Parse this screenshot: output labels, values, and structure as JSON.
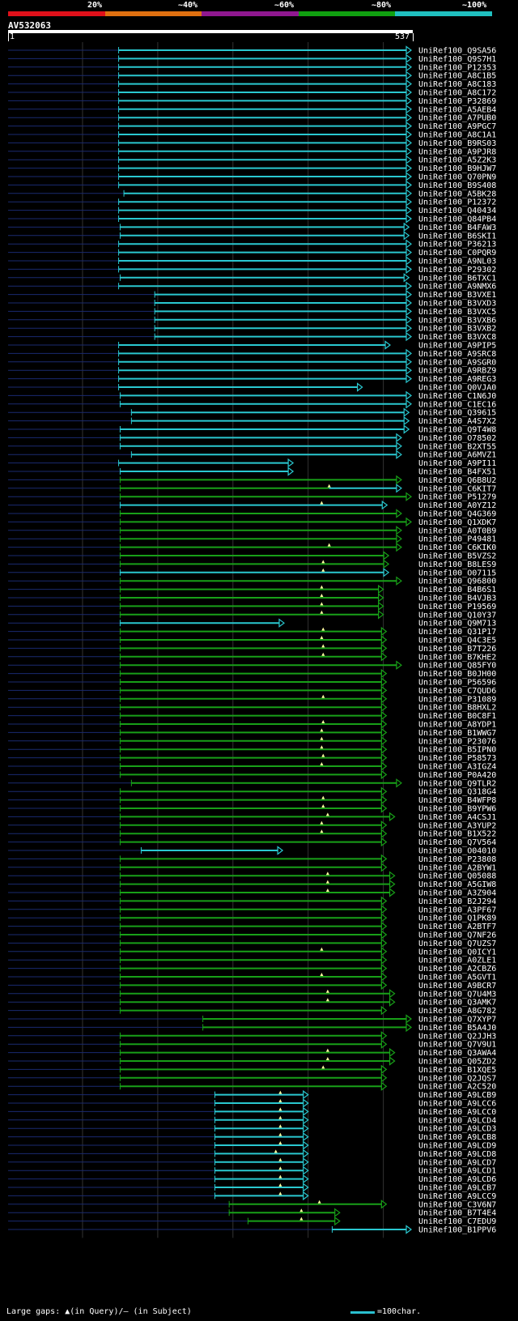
{
  "legend": {
    "items": [
      {
        "label": "20%",
        "color": "#e0101a"
      },
      {
        "label": "~40%",
        "color": "#e07010"
      },
      {
        "label": "~60%",
        "color": "#901890"
      },
      {
        "label": "~80%",
        "color": "#10a010"
      },
      {
        "label": "~100%",
        "color": "#20c0c0"
      }
    ]
  },
  "query": {
    "name": "AV532063",
    "start_label": "1",
    "end_label": "537",
    "length": 537
  },
  "colors": {
    "cyan": "#2ac8d0",
    "green": "#18a018",
    "tail": "#1a2a70",
    "grid": "#333333",
    "marker": "#ffffa0"
  },
  "hits": [
    {
      "name": "UniRef100_Q9SA56",
      "s": 148,
      "e": 537,
      "c": "cyan"
    },
    {
      "name": "UniRef100_Q9S7H1",
      "s": 148,
      "e": 537,
      "c": "cyan"
    },
    {
      "name": "UniRef100_P12353",
      "s": 148,
      "e": 537,
      "c": "cyan"
    },
    {
      "name": "UniRef100_A8C1B5",
      "s": 148,
      "e": 537,
      "c": "cyan"
    },
    {
      "name": "UniRef100_A8C183",
      "s": 148,
      "e": 537,
      "c": "cyan"
    },
    {
      "name": "UniRef100_A8C172",
      "s": 148,
      "e": 537,
      "c": "cyan"
    },
    {
      "name": "UniRef100_P32869",
      "s": 148,
      "e": 537,
      "c": "cyan"
    },
    {
      "name": "UniRef100_A5AEB4",
      "s": 148,
      "e": 537,
      "c": "cyan"
    },
    {
      "name": "UniRef100_A7PUB0",
      "s": 148,
      "e": 537,
      "c": "cyan"
    },
    {
      "name": "UniRef100_A9PGC7",
      "s": 148,
      "e": 537,
      "c": "cyan"
    },
    {
      "name": "UniRef100_A8C1A1",
      "s": 148,
      "e": 537,
      "c": "cyan"
    },
    {
      "name": "UniRef100_B9RS03",
      "s": 148,
      "e": 537,
      "c": "cyan"
    },
    {
      "name": "UniRef100_A9PJR8",
      "s": 148,
      "e": 537,
      "c": "cyan"
    },
    {
      "name": "UniRef100_A5Z2K3",
      "s": 148,
      "e": 537,
      "c": "cyan"
    },
    {
      "name": "UniRef100_B9HJW7",
      "s": 148,
      "e": 537,
      "c": "cyan"
    },
    {
      "name": "UniRef100_Q70PN9",
      "s": 148,
      "e": 537,
      "c": "cyan"
    },
    {
      "name": "UniRef100_B9S408",
      "s": 148,
      "e": 537,
      "c": "cyan"
    },
    {
      "name": "UniRef100_A5BK28",
      "s": 155,
      "e": 537,
      "c": "cyan"
    },
    {
      "name": "UniRef100_P12372",
      "s": 148,
      "e": 537,
      "c": "cyan"
    },
    {
      "name": "UniRef100_Q40434",
      "s": 148,
      "e": 537,
      "c": "cyan"
    },
    {
      "name": "UniRef100_Q84PB4",
      "s": 148,
      "e": 537,
      "c": "cyan"
    },
    {
      "name": "UniRef100_B4FAW3",
      "s": 150,
      "e": 534,
      "c": "cyan"
    },
    {
      "name": "UniRef100_B6SKI1",
      "s": 150,
      "e": 534,
      "c": "cyan"
    },
    {
      "name": "UniRef100_P36213",
      "s": 148,
      "e": 537,
      "c": "cyan"
    },
    {
      "name": "UniRef100_C0PQR9",
      "s": 148,
      "e": 537,
      "c": "cyan"
    },
    {
      "name": "UniRef100_A9NL03",
      "s": 148,
      "e": 537,
      "c": "cyan"
    },
    {
      "name": "UniRef100_P29302",
      "s": 148,
      "e": 537,
      "c": "cyan"
    },
    {
      "name": "UniRef100_B6TXC1",
      "s": 150,
      "e": 534,
      "c": "cyan"
    },
    {
      "name": "UniRef100_A9NMX6",
      "s": 148,
      "e": 537,
      "c": "cyan"
    },
    {
      "name": "UniRef100_B3VXE1",
      "s": 196,
      "e": 537,
      "c": "cyan"
    },
    {
      "name": "UniRef100_B3VXD3",
      "s": 196,
      "e": 537,
      "c": "cyan"
    },
    {
      "name": "UniRef100_B3VXC5",
      "s": 196,
      "e": 537,
      "c": "cyan"
    },
    {
      "name": "UniRef100_B3VXB6",
      "s": 196,
      "e": 537,
      "c": "cyan"
    },
    {
      "name": "UniRef100_B3VXB2",
      "s": 196,
      "e": 537,
      "c": "cyan"
    },
    {
      "name": "UniRef100_B3VXC8",
      "s": 196,
      "e": 537,
      "c": "cyan"
    },
    {
      "name": "UniRef100_A9PIP5",
      "s": 148,
      "e": 509,
      "c": "cyan"
    },
    {
      "name": "UniRef100_A9SRC8",
      "s": 148,
      "e": 537,
      "c": "cyan"
    },
    {
      "name": "UniRef100_A9SGR0",
      "s": 148,
      "e": 537,
      "c": "cyan"
    },
    {
      "name": "UniRef100_A9RBZ9",
      "s": 148,
      "e": 537,
      "c": "cyan"
    },
    {
      "name": "UniRef100_A9REG3",
      "s": 148,
      "e": 537,
      "c": "cyan"
    },
    {
      "name": "UniRef100_Q0VJA0",
      "s": 148,
      "e": 472,
      "c": "cyan"
    },
    {
      "name": "UniRef100_C1N6J0",
      "s": 150,
      "e": 537,
      "c": "cyan"
    },
    {
      "name": "UniRef100_C1EC16",
      "s": 150,
      "e": 537,
      "c": "cyan"
    },
    {
      "name": "UniRef100_Q39615",
      "s": 165,
      "e": 534,
      "c": "cyan"
    },
    {
      "name": "UniRef100_A4S7X2",
      "s": 165,
      "e": 534,
      "c": "cyan"
    },
    {
      "name": "UniRef100_Q9T4W8",
      "s": 150,
      "e": 534,
      "c": "cyan"
    },
    {
      "name": "UniRef100_O78502",
      "s": 150,
      "e": 524,
      "c": "cyan"
    },
    {
      "name": "UniRef100_B2XT55",
      "s": 150,
      "e": 524,
      "c": "cyan"
    },
    {
      "name": "UniRef100_A6MVZ1",
      "s": 165,
      "e": 524,
      "c": "cyan"
    },
    {
      "name": "UniRef100_A9PI11",
      "s": 148,
      "e": 380,
      "c": "cyan"
    },
    {
      "name": "UniRef100_B4FX51",
      "s": 150,
      "e": 380,
      "c": "cyan"
    },
    {
      "name": "UniRef100_Q6B8U2",
      "s": 150,
      "e": 524,
      "c": "green"
    },
    {
      "name": "UniRef100_C6KIT7",
      "s": 150,
      "e": 524,
      "c": "green",
      "t": "cyan",
      "g": 428
    },
    {
      "name": "UniRef100_P51279",
      "s": 150,
      "e": 537,
      "c": "green"
    },
    {
      "name": "UniRef100_A0YZ12",
      "s": 150,
      "e": 505,
      "c": "cyan",
      "g": 418
    },
    {
      "name": "UniRef100_Q4G369",
      "s": 150,
      "e": 524,
      "c": "green"
    },
    {
      "name": "UniRef100_Q1XDK7",
      "s": 150,
      "e": 537,
      "c": "green"
    },
    {
      "name": "UniRef100_A0T0B9",
      "s": 150,
      "e": 524,
      "c": "green"
    },
    {
      "name": "UniRef100_P49481",
      "s": 150,
      "e": 524,
      "c": "green"
    },
    {
      "name": "UniRef100_C6KIK0",
      "s": 150,
      "e": 524,
      "c": "green",
      "g": 428
    },
    {
      "name": "UniRef100_B5VZS2",
      "s": 150,
      "e": 507,
      "c": "green"
    },
    {
      "name": "UniRef100_B8LES9",
      "s": 150,
      "e": 507,
      "c": "green",
      "g": 420
    },
    {
      "name": "UniRef100_O07115",
      "s": 150,
      "e": 507,
      "c": "cyan",
      "g": 420
    },
    {
      "name": "UniRef100_Q96800",
      "s": 150,
      "e": 524,
      "c": "green"
    },
    {
      "name": "UniRef100_B4B6S1",
      "s": 150,
      "e": 500,
      "c": "green",
      "g": 418
    },
    {
      "name": "UniRef100_B4VJB3",
      "s": 150,
      "e": 500,
      "c": "green",
      "g": 418
    },
    {
      "name": "UniRef100_P19569",
      "s": 150,
      "e": 500,
      "c": "green",
      "g": 418
    },
    {
      "name": "UniRef100_Q10Y37",
      "s": 150,
      "e": 500,
      "c": "green",
      "g": 418
    },
    {
      "name": "UniRef100_Q9M713",
      "s": 150,
      "e": 368,
      "c": "cyan"
    },
    {
      "name": "UniRef100_Q31P17",
      "s": 150,
      "e": 504,
      "c": "green",
      "g": 420
    },
    {
      "name": "UniRef100_Q4C3E5",
      "s": 150,
      "e": 504,
      "c": "green",
      "g": 418
    },
    {
      "name": "UniRef100_B7T226",
      "s": 150,
      "e": 504,
      "c": "green",
      "g": 420
    },
    {
      "name": "UniRef100_B7KHE2",
      "s": 150,
      "e": 504,
      "c": "green",
      "g": 420
    },
    {
      "name": "UniRef100_Q85FY0",
      "s": 150,
      "e": 524,
      "c": "green"
    },
    {
      "name": "UniRef100_B0JH00",
      "s": 150,
      "e": 504,
      "c": "green"
    },
    {
      "name": "UniRef100_P56596",
      "s": 150,
      "e": 504,
      "c": "green"
    },
    {
      "name": "UniRef100_C7QUD6",
      "s": 150,
      "e": 504,
      "c": "green"
    },
    {
      "name": "UniRef100_P31089",
      "s": 150,
      "e": 504,
      "c": "green",
      "g": 420
    },
    {
      "name": "UniRef100_B8HXL2",
      "s": 150,
      "e": 504,
      "c": "green"
    },
    {
      "name": "UniRef100_B0C8F1",
      "s": 150,
      "e": 504,
      "c": "green"
    },
    {
      "name": "UniRef100_A8YDP1",
      "s": 150,
      "e": 504,
      "c": "green",
      "g": 420
    },
    {
      "name": "UniRef100_B1WWG7",
      "s": 150,
      "e": 504,
      "c": "green",
      "g": 418
    },
    {
      "name": "UniRef100_P23076",
      "s": 150,
      "e": 504,
      "c": "green",
      "g": 418
    },
    {
      "name": "UniRef100_B5IPN0",
      "s": 150,
      "e": 504,
      "c": "green",
      "g": 418
    },
    {
      "name": "UniRef100_P58573",
      "s": 150,
      "e": 504,
      "c": "green",
      "g": 420
    },
    {
      "name": "UniRef100_A3IGZ4",
      "s": 150,
      "e": 504,
      "c": "green",
      "g": 418
    },
    {
      "name": "UniRef100_P0A420",
      "s": 150,
      "e": 504,
      "c": "green"
    },
    {
      "name": "UniRef100_Q9TLR2",
      "s": 165,
      "e": 524,
      "c": "green"
    },
    {
      "name": "UniRef100_Q318G4",
      "s": 150,
      "e": 504,
      "c": "green"
    },
    {
      "name": "UniRef100_B4WFP8",
      "s": 150,
      "e": 504,
      "c": "green",
      "g": 420
    },
    {
      "name": "UniRef100_B9YPW6",
      "s": 150,
      "e": 504,
      "c": "green",
      "g": 420
    },
    {
      "name": "UniRef100_A4CSJ1",
      "s": 150,
      "e": 515,
      "c": "green",
      "g": 426
    },
    {
      "name": "UniRef100_A3YUP2",
      "s": 150,
      "e": 504,
      "c": "green",
      "g": 418
    },
    {
      "name": "UniRef100_B1X522",
      "s": 150,
      "e": 504,
      "c": "green",
      "g": 418
    },
    {
      "name": "UniRef100_Q7V564",
      "s": 150,
      "e": 504,
      "c": "green"
    },
    {
      "name": "UniRef100_O04010",
      "s": 178,
      "e": 366,
      "c": "cyan"
    },
    {
      "name": "UniRef100_P23808",
      "s": 150,
      "e": 504,
      "c": "green"
    },
    {
      "name": "UniRef100_A2BYW1",
      "s": 150,
      "e": 504,
      "c": "green"
    },
    {
      "name": "UniRef100_Q05088",
      "s": 150,
      "e": 515,
      "c": "green",
      "g": 426
    },
    {
      "name": "UniRef100_A5GIW8",
      "s": 150,
      "e": 515,
      "c": "green",
      "g": 426
    },
    {
      "name": "UniRef100_A3Z904",
      "s": 150,
      "e": 515,
      "c": "green",
      "g": 426
    },
    {
      "name": "UniRef100_B2J294",
      "s": 150,
      "e": 504,
      "c": "green"
    },
    {
      "name": "UniRef100_A3PF67",
      "s": 150,
      "e": 504,
      "c": "green"
    },
    {
      "name": "UniRef100_Q1PK89",
      "s": 150,
      "e": 504,
      "c": "green"
    },
    {
      "name": "UniRef100_A2BTF7",
      "s": 150,
      "e": 504,
      "c": "green"
    },
    {
      "name": "UniRef100_Q7NF26",
      "s": 150,
      "e": 504,
      "c": "green"
    },
    {
      "name": "UniRef100_Q7UZS7",
      "s": 150,
      "e": 504,
      "c": "green"
    },
    {
      "name": "UniRef100_Q0ICY1",
      "s": 150,
      "e": 504,
      "c": "green",
      "g": 418
    },
    {
      "name": "UniRef100_A0ZLE1",
      "s": 150,
      "e": 504,
      "c": "green"
    },
    {
      "name": "UniRef100_A2CBZ6",
      "s": 150,
      "e": 504,
      "c": "green"
    },
    {
      "name": "UniRef100_A5GVT1",
      "s": 150,
      "e": 504,
      "c": "green",
      "g": 418
    },
    {
      "name": "UniRef100_A9BCR7",
      "s": 150,
      "e": 504,
      "c": "green"
    },
    {
      "name": "UniRef100_Q7U4M3",
      "s": 150,
      "e": 515,
      "c": "green",
      "g": 426
    },
    {
      "name": "UniRef100_Q3AMK7",
      "s": 150,
      "e": 515,
      "c": "green",
      "g": 426
    },
    {
      "name": "UniRef100_A8G782",
      "s": 150,
      "e": 504,
      "c": "green"
    },
    {
      "name": "UniRef100_Q7XYP7",
      "s": 260,
      "e": 537,
      "c": "green"
    },
    {
      "name": "UniRef100_B5A4J0",
      "s": 260,
      "e": 537,
      "c": "green"
    },
    {
      "name": "UniRef100_Q2JJH3",
      "s": 150,
      "e": 504,
      "c": "green"
    },
    {
      "name": "UniRef100_Q7V9U1",
      "s": 150,
      "e": 504,
      "c": "green"
    },
    {
      "name": "UniRef100_Q3AWA4",
      "s": 150,
      "e": 515,
      "c": "green",
      "g": 426
    },
    {
      "name": "UniRef100_Q05ZD2",
      "s": 150,
      "e": 515,
      "c": "green",
      "g": 426
    },
    {
      "name": "UniRef100_B1XQE5",
      "s": 150,
      "e": 504,
      "c": "green",
      "g": 420
    },
    {
      "name": "UniRef100_Q2JQS7",
      "s": 150,
      "e": 504,
      "c": "green"
    },
    {
      "name": "UniRef100_A2C520",
      "s": 150,
      "e": 504,
      "c": "green"
    },
    {
      "name": "UniRef100_A9LCB9",
      "s": 276,
      "e": 400,
      "c": "cyan",
      "g": 363
    },
    {
      "name": "UniRef100_A9LCC6",
      "s": 276,
      "e": 400,
      "c": "cyan",
      "g": 363
    },
    {
      "name": "UniRef100_A9LCC0",
      "s": 276,
      "e": 400,
      "c": "cyan",
      "g": 363
    },
    {
      "name": "UniRef100_A9LCD4",
      "s": 276,
      "e": 400,
      "c": "cyan",
      "g": 363
    },
    {
      "name": "UniRef100_A9LCD3",
      "s": 276,
      "e": 400,
      "c": "cyan",
      "g": 363
    },
    {
      "name": "UniRef100_A9LCB8",
      "s": 276,
      "e": 400,
      "c": "cyan",
      "g": 363
    },
    {
      "name": "UniRef100_A9LCD9",
      "s": 276,
      "e": 400,
      "c": "cyan",
      "g": 363
    },
    {
      "name": "UniRef100_A9LCD8",
      "s": 276,
      "e": 400,
      "c": "cyan",
      "g": 357
    },
    {
      "name": "UniRef100_A9LCD7",
      "s": 276,
      "e": 400,
      "c": "cyan",
      "g": 363
    },
    {
      "name": "UniRef100_A9LCD1",
      "s": 276,
      "e": 400,
      "c": "cyan",
      "g": 363
    },
    {
      "name": "UniRef100_A9LCD6",
      "s": 276,
      "e": 400,
      "c": "cyan",
      "g": 363
    },
    {
      "name": "UniRef100_A9LCB7",
      "s": 276,
      "e": 400,
      "c": "cyan",
      "g": 363
    },
    {
      "name": "UniRef100_A9LCC9",
      "s": 276,
      "e": 400,
      "c": "cyan",
      "g": 363
    },
    {
      "name": "UniRef100_C3V6N7",
      "s": 295,
      "e": 504,
      "c": "green",
      "g": 415
    },
    {
      "name": "UniRef100_B7T4E4",
      "s": 295,
      "e": 442,
      "c": "green",
      "g": 391
    },
    {
      "name": "UniRef100_C7EDU9",
      "s": 320,
      "e": 442,
      "c": "green",
      "g": 391
    },
    {
      "name": "UniRef100_B1PPV6",
      "s": 432,
      "e": 537,
      "c": "cyan"
    }
  ],
  "footer": {
    "gap_note": "Large gaps: ▲(in Query)/— (in Subject)",
    "scale_label": "=100char."
  }
}
